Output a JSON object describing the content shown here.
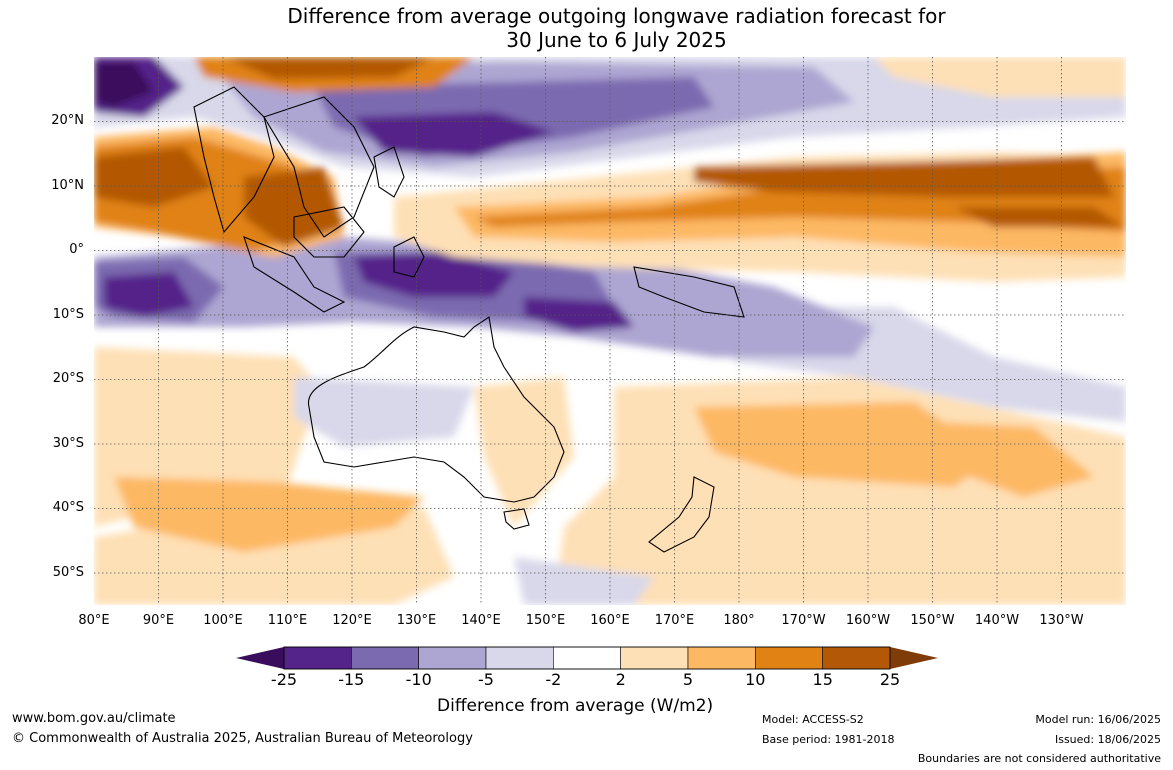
{
  "title": {
    "line1": "Difference from average outgoing longwave radiation forecast for",
    "line2": "30 June to 6 July 2025"
  },
  "map": {
    "lat_labels": [
      "20°N",
      "10°N",
      "0°",
      "10°S",
      "20°S",
      "30°S",
      "40°S",
      "50°S"
    ],
    "lon_labels": [
      "80°E",
      "90°E",
      "100°E",
      "110°E",
      "120°E",
      "130°E",
      "140°E",
      "150°E",
      "160°E",
      "170°E",
      "180°",
      "170°W",
      "160°W",
      "150°W",
      "140°W",
      "130°W"
    ],
    "lat_range": [
      -55,
      30
    ],
    "lon_range": [
      80,
      240
    ]
  },
  "colorbar": {
    "labels": [
      "-25",
      "-15",
      "-10",
      "-5",
      "-2",
      "2",
      "5",
      "10",
      "15",
      "25"
    ],
    "colors": [
      "#3a0c5c",
      "#54248a",
      "#7b6ab0",
      "#ada6d2",
      "#d8d8ea",
      "#ffffff",
      "#fee0b6",
      "#fdb863",
      "#e08214",
      "#b35806",
      "#7f3b08"
    ],
    "title": "Difference from average (W/m2)"
  },
  "footer": {
    "url": "www.bom.gov.au/climate",
    "copyright": "© Commonwealth of Australia 2025, Australian Bureau of Meteorology",
    "model": "Model: ACCESS-S2",
    "base_period": "Base period: 1981-2018",
    "model_run": "Model run: 16/06/2025",
    "issued": "Issued: 18/06/2025",
    "disclaimer": "Boundaries are not considered authoritative"
  }
}
